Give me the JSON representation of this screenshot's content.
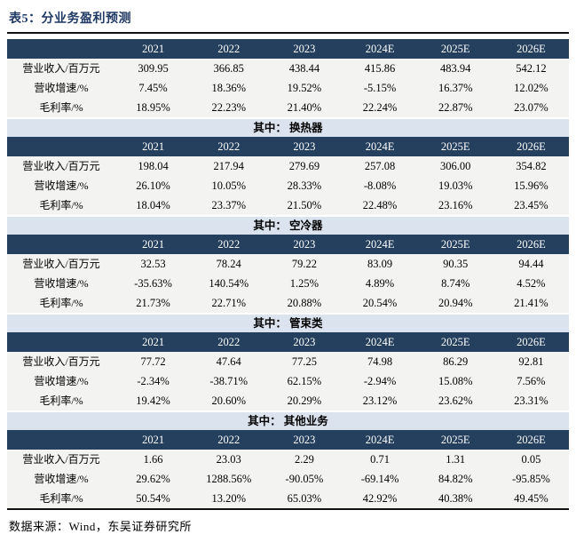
{
  "title": "表5：分业务盈利预测",
  "source": "数据来源：Wind，东吴证券研究所",
  "colors": {
    "header_bg": "#24405E",
    "divider_bg": "#DBE3EF",
    "row_bg": "#F3F3F1",
    "title_text": "#1F3864",
    "header_text": "#FFFFFF",
    "rule": "#121212"
  },
  "years": [
    "2021",
    "2022",
    "2023",
    "2024E",
    "2025E",
    "2026E"
  ],
  "sections": [
    {
      "divider": null,
      "rows": [
        {
          "label": "营业收入/百万元",
          "values": [
            "309.95",
            "366.85",
            "438.44",
            "415.86",
            "483.94",
            "542.12"
          ]
        },
        {
          "label": "营收增速/%",
          "values": [
            "7.45%",
            "18.36%",
            "19.52%",
            "-5.15%",
            "16.37%",
            "12.02%"
          ]
        },
        {
          "label": "毛利率/%",
          "values": [
            "18.95%",
            "22.23%",
            "21.40%",
            "22.24%",
            "22.87%",
            "23.07%"
          ]
        }
      ]
    },
    {
      "divider": "其中： 换热器",
      "rows": [
        {
          "label": "营业收入/百万元",
          "values": [
            "198.04",
            "217.94",
            "279.69",
            "257.08",
            "306.00",
            "354.82"
          ]
        },
        {
          "label": "营收增速/%",
          "values": [
            "26.10%",
            "10.05%",
            "28.33%",
            "-8.08%",
            "19.03%",
            "15.96%"
          ]
        },
        {
          "label": "毛利率/%",
          "values": [
            "18.04%",
            "23.37%",
            "21.50%",
            "22.48%",
            "23.16%",
            "23.45%"
          ]
        }
      ]
    },
    {
      "divider": "其中： 空冷器",
      "rows": [
        {
          "label": "营业收入/百万元",
          "values": [
            "32.53",
            "78.24",
            "79.22",
            "83.09",
            "90.35",
            "94.44"
          ]
        },
        {
          "label": "营收增速/%",
          "values": [
            "-35.63%",
            "140.54%",
            "1.25%",
            "4.89%",
            "8.74%",
            "4.52%"
          ]
        },
        {
          "label": "毛利率/%",
          "values": [
            "21.73%",
            "22.71%",
            "20.88%",
            "20.54%",
            "20.94%",
            "21.41%"
          ]
        }
      ]
    },
    {
      "divider": "其中： 管束类",
      "rows": [
        {
          "label": "营业收入/百万元",
          "values": [
            "77.72",
            "47.64",
            "77.25",
            "74.98",
            "86.29",
            "92.81"
          ]
        },
        {
          "label": "营收增速/%",
          "values": [
            "-2.34%",
            "-38.71%",
            "62.15%",
            "-2.94%",
            "15.08%",
            "7.56%"
          ]
        },
        {
          "label": "毛利率/%",
          "values": [
            "19.42%",
            "20.60%",
            "20.29%",
            "23.12%",
            "23.62%",
            "23.31%"
          ]
        }
      ]
    },
    {
      "divider": "其中： 其他业务",
      "rows": [
        {
          "label": "营业收入/百万元",
          "values": [
            "1.66",
            "23.03",
            "2.29",
            "0.71",
            "1.31",
            "0.05"
          ]
        },
        {
          "label": "营收增速/%",
          "values": [
            "29.62%",
            "1288.56%",
            "-90.05%",
            "-69.14%",
            "84.82%",
            "-95.85%"
          ]
        },
        {
          "label": "毛利率/%",
          "values": [
            "50.54%",
            "13.20%",
            "65.03%",
            "42.92%",
            "40.38%",
            "49.45%"
          ]
        }
      ]
    }
  ]
}
